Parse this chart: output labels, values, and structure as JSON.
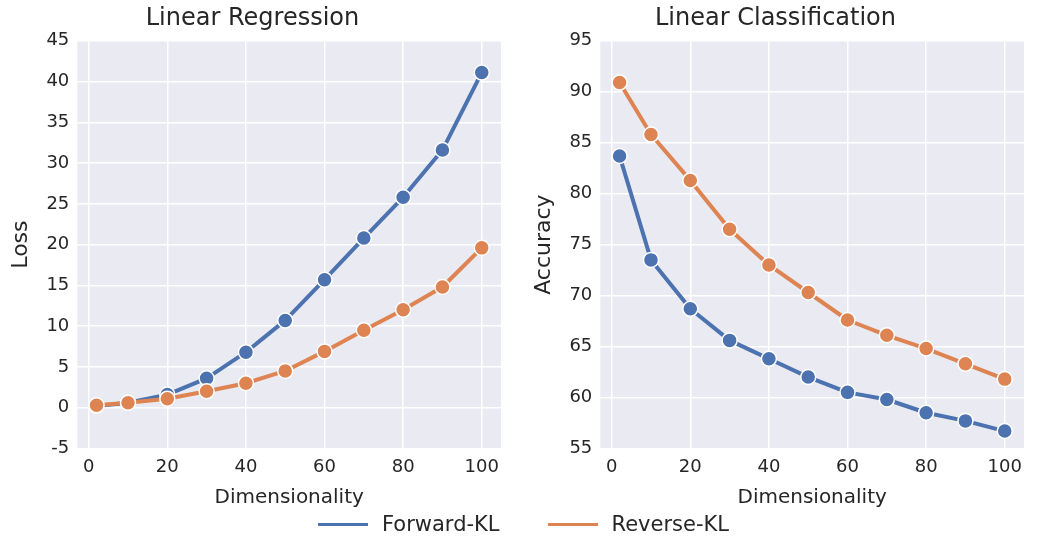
{
  "chart_data": [
    {
      "type": "line",
      "title": "Linear Regression",
      "xlabel": "Dimensionality",
      "ylabel": "Loss",
      "x": [
        2,
        10,
        20,
        30,
        40,
        50,
        60,
        70,
        80,
        90,
        100
      ],
      "series": [
        {
          "color": "#4c72b0",
          "values": [
            0.2,
            0.6,
            1.6,
            3.6,
            6.8,
            10.7,
            15.7,
            20.8,
            25.8,
            31.6,
            41.1
          ]
        },
        {
          "color": "#dd8452",
          "values": [
            0.3,
            0.6,
            1.1,
            2.0,
            3.0,
            4.5,
            6.9,
            9.5,
            12.0,
            14.8,
            19.6
          ]
        }
      ],
      "xlim": [
        -2.9,
        104.9
      ],
      "xticks": [
        0,
        20,
        40,
        60,
        80,
        100
      ],
      "ylim": [
        -5,
        45
      ],
      "yticks": [
        -5,
        0,
        5,
        10,
        15,
        20,
        25,
        30,
        35,
        40,
        45
      ],
      "grid": true,
      "marker": "circle",
      "line_style": "solid"
    },
    {
      "type": "line",
      "title": "Linear Classification",
      "xlabel": "Dimensionality",
      "ylabel": "Accuracy",
      "x": [
        2,
        10,
        20,
        30,
        40,
        50,
        60,
        70,
        80,
        90,
        100
      ],
      "series": [
        {
          "name": "Forward-KL",
          "color": "#4c72b0",
          "values": [
            83.7,
            73.5,
            68.7,
            65.6,
            63.8,
            62.0,
            60.5,
            59.8,
            58.5,
            57.7,
            56.7
          ]
        },
        {
          "name": "Reverse-KL",
          "color": "#dd8452",
          "values": [
            90.9,
            85.8,
            81.3,
            76.5,
            73.0,
            70.3,
            67.6,
            66.1,
            64.8,
            63.3,
            61.8
          ]
        }
      ],
      "xlim": [
        -2.9,
        104.9
      ],
      "xticks": [
        0,
        20,
        40,
        60,
        80,
        100
      ],
      "ylim": [
        55,
        95
      ],
      "yticks": [
        55,
        60,
        65,
        70,
        75,
        80,
        85,
        90,
        95
      ],
      "grid": true,
      "marker": "circle",
      "line_style": "solid",
      "legend": "bottom"
    }
  ]
}
